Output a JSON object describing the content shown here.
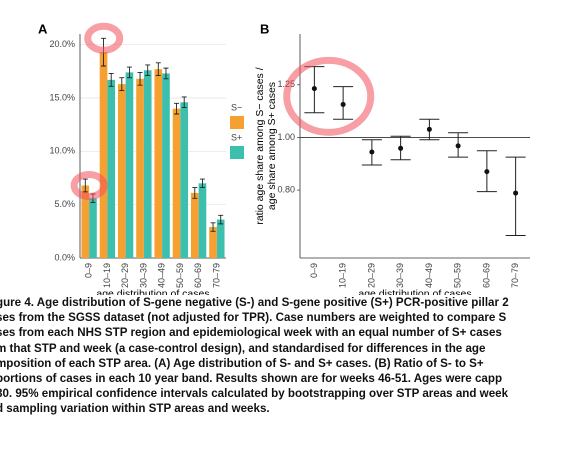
{
  "chart_data": [
    {
      "type": "bar",
      "panel": "A",
      "xlabel": "age distribution of cases",
      "categories": [
        "0–9",
        "10–19",
        "20–29",
        "30–39",
        "40–49",
        "50–59",
        "60–69",
        "70–79"
      ],
      "series": [
        {
          "name": "S−",
          "color": "#f5a031",
          "values": [
            6.8,
            19.3,
            16.3,
            16.8,
            17.7,
            14.0,
            6.1,
            2.9
          ],
          "errors": [
            0.6,
            1.3,
            0.6,
            0.6,
            0.6,
            0.5,
            0.5,
            0.4
          ]
        },
        {
          "name": "S+",
          "color": "#3cbfad",
          "values": [
            5.6,
            16.7,
            17.4,
            17.6,
            17.3,
            14.6,
            7.0,
            3.6
          ],
          "errors": [
            0.4,
            0.6,
            0.5,
            0.5,
            0.5,
            0.5,
            0.4,
            0.4
          ]
        }
      ],
      "ylim": [
        0,
        21
      ],
      "yticks": [
        {
          "value": 0,
          "label": "0.0%"
        },
        {
          "value": 5,
          "label": "5.0%"
        },
        {
          "value": 10,
          "label": "10.0%"
        },
        {
          "value": 15,
          "label": "15.0%"
        },
        {
          "value": 20,
          "label": "20.0%"
        }
      ],
      "grid": true
    },
    {
      "type": "errorpoint",
      "panel": "B",
      "xlabel": "age distribution of cases",
      "ylabel": [
        "ratio age share among S− cases /",
        "age share among S+ cases"
      ],
      "categories": [
        "0–9",
        "10–19",
        "20–29",
        "30–39",
        "40–49",
        "50–59",
        "60–69",
        "70–79"
      ],
      "values": [
        1.23,
        1.15,
        0.94,
        0.955,
        1.035,
        0.965,
        0.865,
        0.79
      ],
      "lower": [
        1.11,
        1.08,
        0.89,
        0.91,
        0.99,
        0.92,
        0.795,
        0.66
      ],
      "upper": [
        1.35,
        1.24,
        0.99,
        1.005,
        1.08,
        1.02,
        0.945,
        0.92
      ],
      "reference": 1,
      "log_y": true,
      "ylim": [
        0.6,
        1.55
      ],
      "yticks": [
        {
          "value": 0.8,
          "label": "0.80"
        },
        {
          "value": 1,
          "label": "1.00"
        },
        {
          "value": 1.25,
          "label": "1.25"
        }
      ],
      "grid": false
    }
  ],
  "caption": [
    "gure 4. Age distribution of S-gene negative (S-) and S-gene positive (S+) PCR-positive pillar 2",
    "ses from the SGSS dataset (not adjusted for TPR). Case numbers are weighted to compare S",
    "ses from each NHS STP region and epidemiological week with an equal number of S+ cases",
    "m that STP and week (a case-control design), and standardised for differences in the age",
    "mposition of each STP area. (A) Age distribution of S- and S+ cases. (B) Ratio of S- to S+",
    "portions of cases in each 10 year band. Results shown are for weeks 46-51. Ages were capp",
    "80. 95% empirical confidence intervals calculated by bootstrapping over STP areas and week",
    "d sampling variation within STP areas and weeks."
  ]
}
